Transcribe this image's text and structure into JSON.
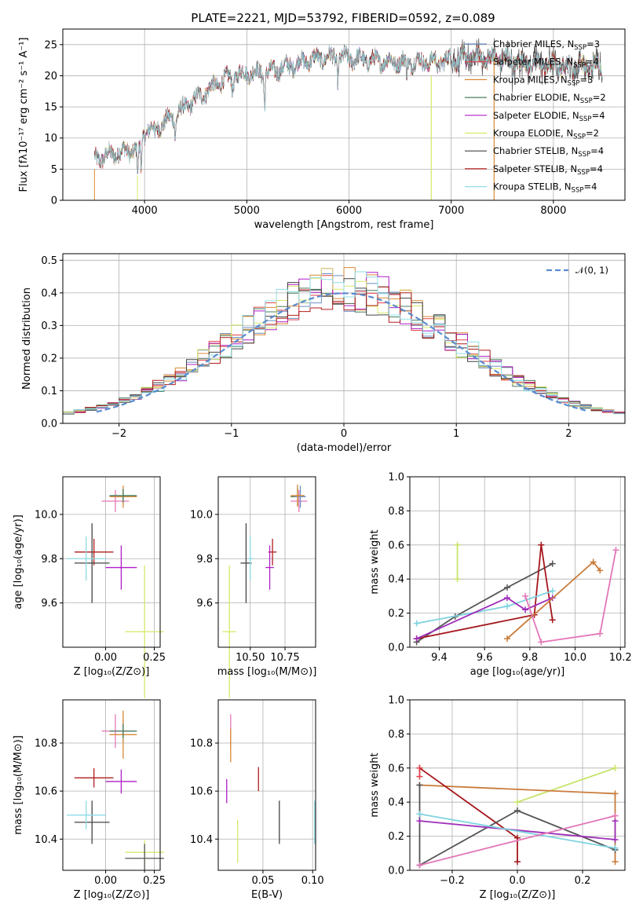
{
  "figure": {
    "title": "PLATE=2221, MJD=53792, FIBERID=0592, z=0.089"
  },
  "colors": {
    "Chabrier MILES": "#6b8fc4",
    "Salpeter MILES": "#e2434a",
    "Kroupa MILES": "#d98a35",
    "Chabrier ELODIE": "#4b7e5e",
    "Salpeter ELODIE": "#b01fc7",
    "Kroupa ELODIE": "#d8e86a",
    "Chabrier STELIB": "#444444",
    "Salpeter STELIB": "#b01d1d",
    "Kroupa STELIB": "#8fdce6",
    "Kroupa ELODIE line": "#c7e36a",
    "Salpeter ELODIE line": "#9e2fba",
    "Kroupa MILES line": "#c97b3a",
    "Salpeter MILES line": "#e377b8",
    "Chabrier STELIB line": "#555555",
    "Salpeter STELIB line": "#a5161c",
    "Kroupa STELIB line": "#7fd3e0",
    "normal": "#5a8bd0"
  },
  "chart_data": [
    {
      "panel": "spectrum",
      "type": "line",
      "xlabel": "wavelength [Angstrom, rest frame]",
      "ylabel": "Flux [fλ10⁻¹⁷ erg cm⁻² s⁻¹ A⁻¹]",
      "xlim": [
        3200,
        8700
      ],
      "ylim": [
        0,
        27.5
      ],
      "xticks": [
        "4000",
        "5000",
        "6000",
        "7000",
        "8000"
      ],
      "yticks": [
        "0",
        "5",
        "10",
        "15",
        "20",
        "25"
      ],
      "legend_position": "right",
      "legend": [
        {
          "name": "Chabrier MILES, N",
          "sub": "SSP",
          "post": "=3",
          "color": "#6b8fc4"
        },
        {
          "name": "Salpeter MILES, N",
          "sub": "SSP",
          "post": "=4",
          "color": "#e2434a"
        },
        {
          "name": "Kroupa MILES, N",
          "sub": "SSP",
          "post": "=3",
          "color": "#d98a35"
        },
        {
          "name": "Chabrier ELODIE, N",
          "sub": "SSP",
          "post": "=2",
          "color": "#4b7e5e"
        },
        {
          "name": "Salpeter ELODIE, N",
          "sub": "SSP",
          "post": "=4",
          "color": "#b01fc7"
        },
        {
          "name": "Kroupa ELODIE, N",
          "sub": "SSP",
          "post": "=2",
          "color": "#d8e86a"
        },
        {
          "name": "Chabrier STELIB, N",
          "sub": "SSP",
          "post": "=4",
          "color": "#444444"
        },
        {
          "name": "Salpeter STELIB, N",
          "sub": "SSP",
          "post": "=4",
          "color": "#b01d1d"
        },
        {
          "name": "Kroupa STELIB, N",
          "sub": "SSP",
          "post": "=4",
          "color": "#8fdce6"
        }
      ],
      "continuum": [
        [
          3500,
          6.5
        ],
        [
          3700,
          7.5
        ],
        [
          3850,
          8.0
        ],
        [
          3950,
          8.0
        ],
        [
          4000,
          11.0
        ],
        [
          4200,
          12.5
        ],
        [
          4400,
          15.0
        ],
        [
          4600,
          17.5
        ],
        [
          4800,
          19.5
        ],
        [
          5000,
          20.5
        ],
        [
          5200,
          20.5
        ],
        [
          5400,
          21.5
        ],
        [
          5600,
          22.5
        ],
        [
          5800,
          23.0
        ],
        [
          6000,
          22.8
        ],
        [
          6200,
          22.5
        ],
        [
          6500,
          22.2
        ],
        [
          6800,
          22.3
        ],
        [
          7000,
          22.5
        ],
        [
          7200,
          23.0
        ],
        [
          7500,
          22.7
        ],
        [
          7800,
          22.0
        ],
        [
          8100,
          21.5
        ],
        [
          8400,
          21.5
        ]
      ],
      "dips": [
        [
          3933,
          4.0
        ],
        [
          3968,
          3.5
        ],
        [
          4101,
          2.0
        ],
        [
          4300,
          3.0
        ],
        [
          4861,
          2.0
        ],
        [
          5175,
          5.0
        ],
        [
          5890,
          3.0
        ],
        [
          6563,
          2.0
        ],
        [
          6870,
          1.5
        ],
        [
          7600,
          2.0
        ],
        [
          8542,
          2.5
        ]
      ]
    },
    {
      "panel": "residual-histogram",
      "type": "histogram",
      "xlabel": "(data-model)/error",
      "ylabel": "Normed distribution",
      "xlim": [
        -2.5,
        2.5
      ],
      "ylim": [
        0,
        0.52
      ],
      "xticks": [
        "−2",
        "−1",
        "0",
        "1",
        "2"
      ],
      "yticks": [
        "0.0",
        "0.1",
        "0.2",
        "0.3",
        "0.4",
        "0.5"
      ],
      "bin_width": 0.1,
      "legend_label": "𝒩(0, 1)",
      "legend_position": "top-right",
      "normal_mean": 0,
      "normal_sigma": 1
    },
    {
      "panel": "Z-vs-age",
      "type": "errorbar",
      "xlabel": "Z [log₁₀(Z/Z⊙)]",
      "ylabel": "age  [log₁₀(age/yr)]",
      "xlim": [
        -0.22,
        0.28
      ],
      "ylim": [
        9.4,
        10.17
      ],
      "xticks": [
        "0.00",
        "0.25"
      ],
      "xtick_values": [
        0.0,
        0.25
      ],
      "yticks": [
        "9.6",
        "9.8",
        "10.0"
      ],
      "ytick_values": [
        9.6,
        9.8,
        10.0
      ],
      "points": [
        {
          "x": 0.09,
          "y": 10.08,
          "xerr": 0.07,
          "yerr": 0.035,
          "color": "#6b8fc4"
        },
        {
          "x": 0.05,
          "y": 10.06,
          "xerr": 0.07,
          "yerr": 0.05,
          "color": "#e377b8"
        },
        {
          "x": 0.09,
          "y": 10.08,
          "xerr": 0.07,
          "yerr": 0.05,
          "color": "#d98a35"
        },
        {
          "x": 0.09,
          "y": 10.085,
          "xerr": 0.07,
          "yerr": 0.03,
          "color": "#4b7e5e"
        },
        {
          "x": -0.06,
          "y": 9.83,
          "xerr": 0.1,
          "yerr": 0.06,
          "color": "#b01d1d"
        },
        {
          "x": -0.07,
          "y": 9.78,
          "xerr": 0.09,
          "yerr": 0.18,
          "color": "#444444"
        },
        {
          "x": -0.1,
          "y": 9.8,
          "xerr": 0.1,
          "yerr": 0.1,
          "color": "#8fdce6"
        },
        {
          "x": 0.08,
          "y": 9.76,
          "xerr": 0.08,
          "yerr": 0.1,
          "color": "#b01fc7"
        },
        {
          "x": 0.2,
          "y": 9.47,
          "xerr": 0.1,
          "yerr": 0.3,
          "color": "#d8e86a"
        }
      ]
    },
    {
      "panel": "mass-vs-age",
      "type": "errorbar",
      "xlabel": "mass [log₁₀(M/M⊙)]",
      "ylabel": "",
      "xlim": [
        10.27,
        10.97
      ],
      "ylim": [
        9.4,
        10.17
      ],
      "xticks": [
        "10.50",
        "10.75"
      ],
      "xtick_values": [
        10.5,
        10.75
      ],
      "yticks": [
        "9.6",
        "9.8",
        "10.0"
      ],
      "ytick_values": [
        9.6,
        9.8,
        10.0
      ],
      "points": [
        {
          "x": 10.84,
          "y": 10.08,
          "xerr": 0.05,
          "yerr": 0.04,
          "color": "#4b7e5e"
        },
        {
          "x": 10.85,
          "y": 10.06,
          "xerr": 0.06,
          "yerr": 0.05,
          "color": "#e377b8"
        },
        {
          "x": 10.86,
          "y": 10.08,
          "xerr": 0.04,
          "yerr": 0.05,
          "color": "#6b8fc4"
        },
        {
          "x": 10.84,
          "y": 10.085,
          "xerr": 0.05,
          "yerr": 0.05,
          "color": "#d98a35"
        },
        {
          "x": 10.66,
          "y": 9.83,
          "xerr": 0.03,
          "yerr": 0.06,
          "color": "#b01d1d"
        },
        {
          "x": 10.47,
          "y": 9.78,
          "xerr": 0.04,
          "yerr": 0.18,
          "color": "#444444"
        },
        {
          "x": 10.5,
          "y": 9.8,
          "xerr": 0.02,
          "yerr": 0.1,
          "color": "#8fdce6"
        },
        {
          "x": 10.64,
          "y": 9.76,
          "xerr": 0.03,
          "yerr": 0.1,
          "color": "#b01fc7"
        },
        {
          "x": 10.35,
          "y": 9.47,
          "xerr": 0.05,
          "yerr": 0.3,
          "color": "#d8e86a"
        }
      ]
    },
    {
      "panel": "age-vs-weight",
      "type": "line",
      "xlabel": "age  [log₁₀(age/yr)]",
      "ylabel": "mass weight",
      "xlim": [
        9.27,
        10.22
      ],
      "ylim": [
        0,
        1.0
      ],
      "xticks": [
        "9.4",
        "9.6",
        "9.8",
        "10.0",
        "10.2"
      ],
      "xtick_values": [
        9.4,
        9.6,
        9.8,
        10.0,
        10.2
      ],
      "yticks": [
        "0.0",
        "0.2",
        "0.4",
        "0.6",
        "0.8",
        "1.0"
      ],
      "ytick_values": [
        0,
        0.2,
        0.4,
        0.6,
        0.8,
        1.0
      ],
      "series": [
        {
          "color": "#c7e36a",
          "x": [
            9.48,
            9.48
          ],
          "y": [
            0.4,
            0.6
          ]
        },
        {
          "color": "#555555",
          "x": [
            9.3,
            9.47,
            9.7,
            9.9
          ],
          "y": [
            0.03,
            0.18,
            0.35,
            0.49
          ]
        },
        {
          "color": "#a5161c",
          "x": [
            9.3,
            9.82,
            9.85,
            9.9
          ],
          "y": [
            0.05,
            0.19,
            0.6,
            0.16
          ]
        },
        {
          "color": "#7fd3e0",
          "x": [
            9.3,
            9.7,
            9.9
          ],
          "y": [
            0.14,
            0.24,
            0.33
          ]
        },
        {
          "color": "#9e2fba",
          "x": [
            9.3,
            9.7,
            9.78,
            9.9
          ],
          "y": [
            0.05,
            0.29,
            0.22,
            0.29
          ]
        },
        {
          "color": "#c97b3a",
          "x": [
            9.7,
            10.08,
            10.11
          ],
          "y": [
            0.05,
            0.5,
            0.45
          ]
        },
        {
          "color": "#e377b8",
          "x": [
            9.78,
            9.85,
            10.11,
            10.18
          ],
          "y": [
            0.3,
            0.03,
            0.08,
            0.57
          ]
        }
      ]
    },
    {
      "panel": "Z-vs-mass",
      "type": "errorbar",
      "xlabel": "Z [log₁₀(Z/Z⊙)]",
      "ylabel": "mass [log₁₀(M/M⊙)]",
      "xlim": [
        -0.22,
        0.28
      ],
      "ylim": [
        10.27,
        10.98
      ],
      "xticks": [
        "0.00",
        "0.25"
      ],
      "xtick_values": [
        0.0,
        0.25
      ],
      "yticks": [
        "10.4",
        "10.6",
        "10.8"
      ],
      "ytick_values": [
        10.4,
        10.6,
        10.8
      ],
      "points": [
        {
          "x": 0.09,
          "y": 10.85,
          "xerr": 0.07,
          "yerr": 0.05,
          "color": "#6b8fc4"
        },
        {
          "x": 0.05,
          "y": 10.85,
          "xerr": 0.07,
          "yerr": 0.07,
          "color": "#e377b8"
        },
        {
          "x": 0.09,
          "y": 10.835,
          "xerr": 0.07,
          "yerr": 0.1,
          "color": "#d98a35"
        },
        {
          "x": 0.09,
          "y": 10.85,
          "xerr": 0.07,
          "yerr": 0.03,
          "color": "#4b7e5e"
        },
        {
          "x": -0.06,
          "y": 10.655,
          "xerr": 0.1,
          "yerr": 0.04,
          "color": "#b01d1d"
        },
        {
          "x": -0.07,
          "y": 10.47,
          "xerr": 0.09,
          "yerr": 0.09,
          "color": "#444444"
        },
        {
          "x": -0.1,
          "y": 10.5,
          "xerr": 0.1,
          "yerr": 0.06,
          "color": "#8fdce6"
        },
        {
          "x": 0.08,
          "y": 10.64,
          "xerr": 0.08,
          "yerr": 0.05,
          "color": "#b01fc7"
        },
        {
          "x": 0.2,
          "y": 10.345,
          "xerr": 0.1,
          "yerr": 0.05,
          "color": "#d8e86a"
        },
        {
          "x": 0.2,
          "y": 10.32,
          "xerr": 0.1,
          "yerr": 0.06,
          "color": "#555555"
        }
      ]
    },
    {
      "panel": "EBV-vs-mass",
      "type": "errorbar",
      "xlabel": "E(B-V)",
      "ylabel": "",
      "xlim": [
        0.005,
        0.103
      ],
      "ylim": [
        10.27,
        10.98
      ],
      "xticks": [
        "0.05",
        "0.10"
      ],
      "xtick_values": [
        0.05,
        0.1
      ],
      "yticks": [
        "10.4",
        "10.6",
        "10.8"
      ],
      "ytick_values": [
        10.4,
        10.6,
        10.8
      ],
      "points": [
        {
          "x": 0.0175,
          "y": 10.85,
          "xerr": 0,
          "yerr": 0.07,
          "color": "#e377b8"
        },
        {
          "x": 0.0175,
          "y": 10.79,
          "xerr": 0,
          "yerr": 0.07,
          "color": "#d98a35"
        },
        {
          "x": 0.0135,
          "y": 10.6,
          "xerr": 0,
          "yerr": 0.05,
          "color": "#b01fc7"
        },
        {
          "x": 0.0455,
          "y": 10.65,
          "xerr": 0,
          "yerr": 0.05,
          "color": "#b01d1d"
        },
        {
          "x": 0.0245,
          "y": 10.39,
          "xerr": 0,
          "yerr": 0.09,
          "color": "#d8e86a"
        },
        {
          "x": 0.0665,
          "y": 10.47,
          "xerr": 0,
          "yerr": 0.09,
          "color": "#444444"
        },
        {
          "x": 0.102,
          "y": 10.47,
          "xerr": 0,
          "yerr": 0.09,
          "color": "#8fdce6"
        }
      ]
    },
    {
      "panel": "Z-vs-weight",
      "type": "line",
      "xlabel": "Z [log₁₀(Z/Z⊙)]",
      "ylabel": "mass weight",
      "xlim": [
        -0.33,
        0.33
      ],
      "ylim": [
        0,
        1.0
      ],
      "xticks": [
        "−0.2",
        "0.0",
        "0.2"
      ],
      "xtick_values": [
        -0.2,
        0.0,
        0.2
      ],
      "yticks": [
        "0.0",
        "0.2",
        "0.4",
        "0.6",
        "0.8",
        "1.0"
      ],
      "ytick_values": [
        0,
        0.2,
        0.4,
        0.6,
        0.8,
        1.0
      ],
      "series": [
        {
          "color": "#c7e36a",
          "x": [
            0.0,
            0.3
          ],
          "y": [
            0.4,
            0.6
          ]
        },
        {
          "color": "#c97b3a",
          "x": [
            -0.3,
            0.3,
            0.3
          ],
          "y": [
            0.5,
            0.45,
            0.05
          ]
        },
        {
          "color": "#a5161c",
          "x": [
            -0.3,
            0.0,
            0.0
          ],
          "y": [
            0.6,
            0.19,
            0.05
          ]
        },
        {
          "color": "#555555",
          "x": [
            -0.3,
            -0.3,
            0.0,
            0.3
          ],
          "y": [
            0.5,
            0.03,
            0.35,
            0.12
          ]
        },
        {
          "color": "#9e2fba",
          "x": [
            -0.3,
            0.3,
            0.3
          ],
          "y": [
            0.29,
            0.18,
            0.29
          ]
        },
        {
          "color": "#7fd3e0",
          "x": [
            -0.3,
            0.3
          ],
          "y": [
            0.33,
            0.13
          ]
        },
        {
          "color": "#e377b8",
          "x": [
            -0.3,
            0.3
          ],
          "y": [
            0.03,
            0.32
          ]
        },
        {
          "color": "#e2434a",
          "x": [
            -0.3,
            -0.3
          ],
          "y": [
            0.55,
            0.6
          ]
        }
      ]
    }
  ]
}
